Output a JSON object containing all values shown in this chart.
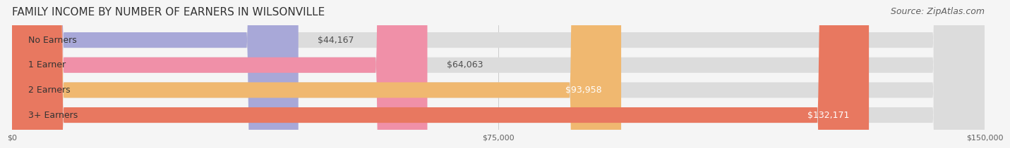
{
  "title": "FAMILY INCOME BY NUMBER OF EARNERS IN WILSONVILLE",
  "source": "Source: ZipAtlas.com",
  "categories": [
    "No Earners",
    "1 Earner",
    "2 Earners",
    "3+ Earners"
  ],
  "values": [
    44167,
    64063,
    93958,
    132171
  ],
  "labels": [
    "$44,167",
    "$64,063",
    "$93,958",
    "$132,171"
  ],
  "bar_colors": [
    "#a8a8d8",
    "#f090a8",
    "#f0b870",
    "#e87860"
  ],
  "bar_bg_color": "#e8e8e8",
  "label_colors": [
    "#505050",
    "#505050",
    "#ffffff",
    "#ffffff"
  ],
  "xlim": [
    0,
    150000
  ],
  "xticks": [
    0,
    75000,
    150000
  ],
  "xticklabels": [
    "$0",
    "$75,000",
    "$150,000"
  ],
  "title_fontsize": 11,
  "source_fontsize": 9,
  "label_fontsize": 9,
  "category_fontsize": 9,
  "background_color": "#f5f5f5",
  "bar_bg_alpha": 1.0,
  "bar_height": 0.62
}
